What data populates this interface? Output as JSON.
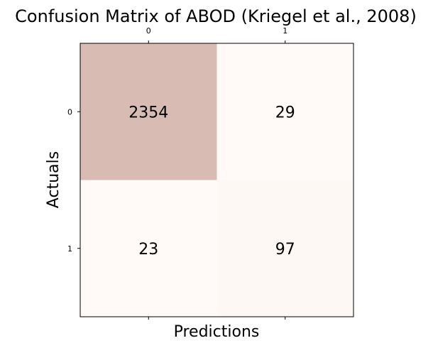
{
  "chart_data": {
    "type": "heatmap",
    "title": "Confusion Matrix of ABOD (Kriegel et al., 2008)",
    "xlabel": "Predictions",
    "ylabel": "Actuals",
    "x_categories": [
      "0",
      "1"
    ],
    "y_categories": [
      "0",
      "1"
    ],
    "x_tick_position": "top",
    "values": [
      [
        2354,
        29
      ],
      [
        23,
        97
      ]
    ],
    "colors": {
      "high": "#d8bcb4",
      "low": "#fffaf7",
      "frame": "#000000",
      "text": "#000000"
    }
  }
}
